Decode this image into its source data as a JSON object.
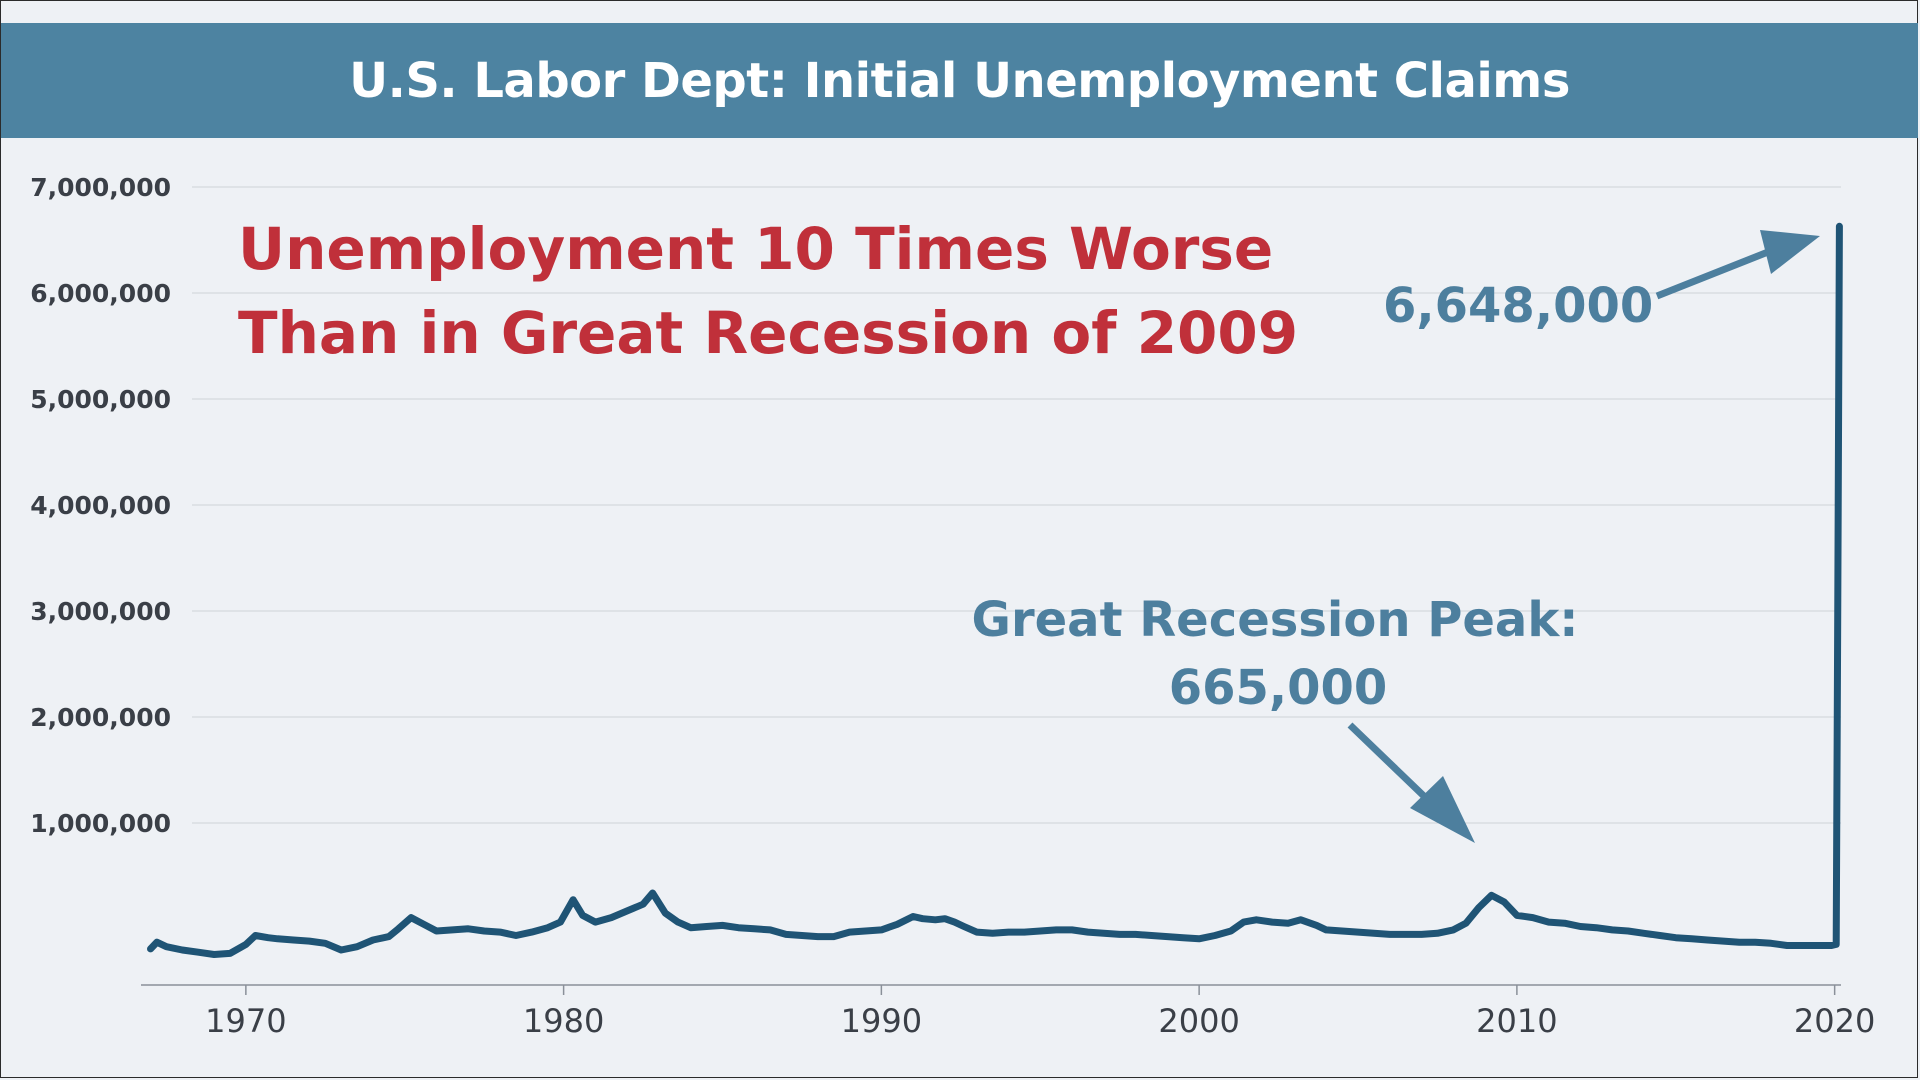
{
  "title": "U.S. Labor Dept: Initial Unemployment Claims",
  "headline": [
    "Unemployment 10 Times Worse",
    "Than in Great Recession of 2009"
  ],
  "colors": {
    "title_bar": "#4d83a1",
    "background": "#eef1f5",
    "line": "#1f5475",
    "headline": "#c0303a",
    "annotation": "#4d7f9e",
    "grid": "#cdd2d8"
  },
  "annotations": {
    "covid_value": "6,648,000",
    "recession_label": "Great Recession Peak:",
    "recession_value": "665,000"
  },
  "chart_data": {
    "type": "line",
    "title": "U.S. Labor Dept: Initial Unemployment Claims",
    "xlabel": "",
    "ylabel": "",
    "xlim": [
      1966.7,
      2020.2
    ],
    "ylim": [
      0,
      7000000
    ],
    "grid": true,
    "legend": "none",
    "x_ticks": [
      "1970",
      "1980",
      "1990",
      "2000",
      "2010",
      "2020"
    ],
    "y_ticks": [
      "1,000,000",
      "2,000,000",
      "3,000,000",
      "4,000,000",
      "5,000,000",
      "6,000,000",
      "7,000,000"
    ],
    "series": [
      {
        "x": [
          1967.0,
          1967.2,
          1967.5,
          1968.0,
          1968.5,
          1969.0,
          1969.5,
          1970.0,
          1970.3,
          1970.7,
          1971.0,
          1971.5,
          1972.0,
          1972.5,
          1973.0,
          1973.5,
          1974.0,
          1974.5,
          1974.8,
          1975.2,
          1975.6,
          1976.0,
          1976.5,
          1977.0,
          1977.5,
          1978.0,
          1978.5,
          1979.0,
          1979.5,
          1979.9,
          1980.3,
          1980.6,
          1981.0,
          1981.5,
          1982.0,
          1982.5,
          1982.8,
          1983.2,
          1983.6,
          1984.0,
          1984.5,
          1985.0,
          1985.5,
          1986.0,
          1986.5,
          1987.0,
          1987.5,
          1988.0,
          1988.5,
          1989.0,
          1989.5,
          1990.0,
          1990.5,
          1991.0,
          1991.3,
          1991.7,
          1992.0,
          1992.3,
          1992.6,
          1993.0,
          1993.5,
          1994.0,
          1994.5,
          1995.0,
          1995.5,
          1996.0,
          1996.5,
          1997.0,
          1997.5,
          1998.0,
          1998.5,
          1999.0,
          1999.5,
          2000.0,
          2000.5,
          2001.0,
          2001.4,
          2001.8,
          2002.3,
          2002.8,
          2003.2,
          2003.7,
          2004.0,
          2004.5,
          2005.0,
          2005.5,
          2006.0,
          2006.5,
          2007.0,
          2007.5,
          2008.0,
          2008.4,
          2008.8,
          2009.2,
          2009.6,
          2010.0,
          2010.5,
          2011.0,
          2011.5,
          2012.0,
          2012.5,
          2013.0,
          2013.5,
          2014.0,
          2014.5,
          2015.0,
          2015.5,
          2016.0,
          2016.5,
          2017.0,
          2017.5,
          2018.0,
          2018.5,
          2019.0,
          2019.5,
          2019.9,
          2020.05,
          2020.1,
          2020.15
        ],
        "values": [
          180000,
          240000,
          200000,
          170000,
          150000,
          130000,
          140000,
          220000,
          300000,
          280000,
          270000,
          260000,
          250000,
          230000,
          170000,
          200000,
          260000,
          290000,
          360000,
          460000,
          400000,
          340000,
          350000,
          360000,
          340000,
          330000,
          300000,
          330000,
          370000,
          420000,
          620000,
          480000,
          420000,
          460000,
          520000,
          580000,
          680000,
          500000,
          420000,
          370000,
          380000,
          390000,
          370000,
          360000,
          350000,
          310000,
          300000,
          290000,
          290000,
          330000,
          340000,
          350000,
          400000,
          470000,
          450000,
          440000,
          450000,
          420000,
          380000,
          330000,
          320000,
          330000,
          330000,
          340000,
          350000,
          350000,
          330000,
          320000,
          310000,
          310000,
          300000,
          290000,
          280000,
          270000,
          300000,
          340000,
          420000,
          440000,
          420000,
          410000,
          440000,
          390000,
          350000,
          340000,
          330000,
          320000,
          310000,
          310000,
          310000,
          320000,
          350000,
          410000,
          550000,
          660000,
          600000,
          480000,
          460000,
          420000,
          410000,
          380000,
          370000,
          350000,
          340000,
          320000,
          300000,
          280000,
          270000,
          260000,
          250000,
          240000,
          240000,
          230000,
          210000,
          210000,
          210000,
          210000,
          220000,
          3307000,
          6648000
        ]
      }
    ]
  }
}
